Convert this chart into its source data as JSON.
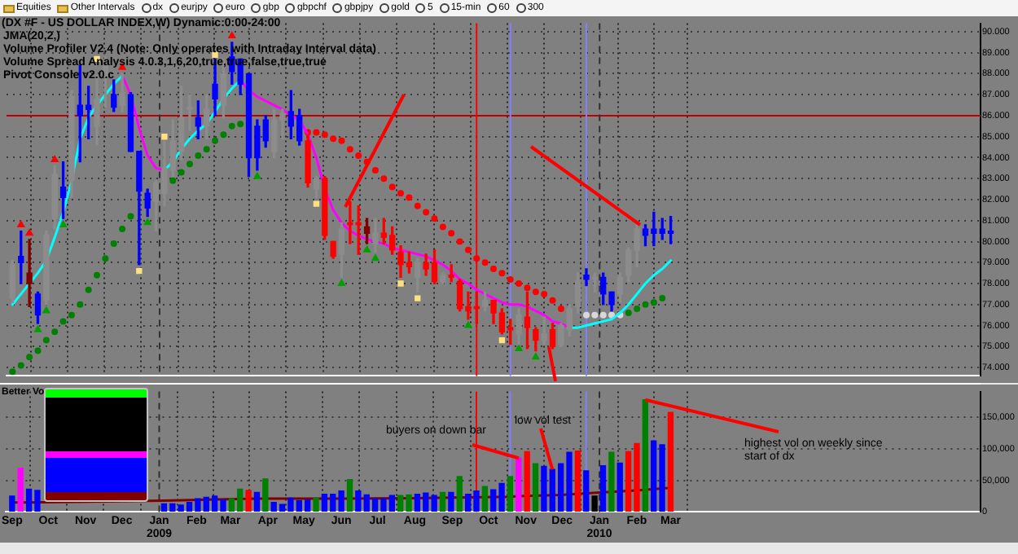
{
  "chart_data": [
    {
      "type": "candlestick",
      "title": "(DX #F - US DOLLAR INDEX,W) Dynamic:0:00-24:00",
      "annotations": [
        "JMA(20,2,)",
        "Volume Profiler V2.4 (Note: Only operates with Intraday Interval data)",
        "Volume Spread Analysis 4.0.3,1,6,20,true,true,false,true,true",
        "Pivot Console v2.0.c"
      ],
      "x": [
        "2008-09-01",
        "2008-09-08",
        "2008-09-15",
        "2008-09-22",
        "2008-09-29",
        "2008-10-06",
        "2008-10-13",
        "2008-10-20",
        "2008-10-27",
        "2008-11-03",
        "2008-11-10",
        "2008-11-17",
        "2008-11-24",
        "2008-12-01",
        "2008-12-08",
        "2008-12-15",
        "2008-12-22",
        "2008-12-29",
        "2009-01-05",
        "2009-01-12",
        "2009-01-19",
        "2009-01-26",
        "2009-02-02",
        "2009-02-09",
        "2009-02-16",
        "2009-02-23",
        "2009-03-02",
        "2009-03-09",
        "2009-03-16",
        "2009-03-23",
        "2009-03-30",
        "2009-04-06",
        "2009-04-13",
        "2009-04-20",
        "2009-04-27",
        "2009-05-04",
        "2009-05-11",
        "2009-05-18",
        "2009-05-25",
        "2009-06-01",
        "2009-06-08",
        "2009-06-15",
        "2009-06-22",
        "2009-06-29",
        "2009-07-06",
        "2009-07-13",
        "2009-07-20",
        "2009-07-27",
        "2009-08-03",
        "2009-08-10",
        "2009-08-17",
        "2009-08-24",
        "2009-08-31",
        "2009-09-07",
        "2009-09-14",
        "2009-09-21",
        "2009-09-28",
        "2009-10-05",
        "2009-10-12",
        "2009-10-19",
        "2009-10-26",
        "2009-11-02",
        "2009-11-09",
        "2009-11-16",
        "2009-11-23",
        "2009-11-30",
        "2009-12-07",
        "2009-12-14",
        "2009-12-21",
        "2009-12-28",
        "2010-01-04",
        "2010-01-11",
        "2010-01-18",
        "2010-01-25",
        "2010-02-01",
        "2010-02-08",
        "2010-02-15",
        "2010-02-22",
        "2010-03-01"
      ],
      "ohlc": [
        [
          77.3,
          79.1,
          77.1,
          78.9
        ],
        [
          79.3,
          80.5,
          78.0,
          79.0
        ],
        [
          78.5,
          80.1,
          76.9,
          78.0
        ],
        [
          77.5,
          77.6,
          76.1,
          76.5
        ],
        [
          77.2,
          80.5,
          77.0,
          80.3
        ],
        [
          81.1,
          83.6,
          80.6,
          83.2
        ],
        [
          82.6,
          83.8,
          81.1,
          82.1
        ],
        [
          82.9,
          87.2,
          82.1,
          86.9
        ],
        [
          86.5,
          88.4,
          83.8,
          86.0
        ],
        [
          86.5,
          87.4,
          84.9,
          86.3
        ],
        [
          85.5,
          87.9,
          84.6,
          86.8
        ],
        [
          87.9,
          88.8,
          86.4,
          88.4
        ],
        [
          87.0,
          87.7,
          86.2,
          86.4
        ],
        [
          86.5,
          88.0,
          86.2,
          87.1
        ],
        [
          87.0,
          87.1,
          84.3,
          84.3
        ],
        [
          84.3,
          84.3,
          78.9,
          82.4
        ],
        [
          82.3,
          82.5,
          81.2,
          81.6
        ],
        [
          81.9,
          82.9,
          80.5,
          82.8
        ],
        [
          82.3,
          84.8,
          81.7,
          83.5
        ],
        [
          83.4,
          85.8,
          83.1,
          84.8
        ],
        [
          84.3,
          87.4,
          83.9,
          85.9
        ],
        [
          86.3,
          87.0,
          85.3,
          86.4
        ],
        [
          85.9,
          86.7,
          84.9,
          85.5
        ],
        [
          85.5,
          87.0,
          84.9,
          86.3
        ],
        [
          87.5,
          88.7,
          86.0,
          86.8
        ],
        [
          86.5,
          88.7,
          85.9,
          88.0
        ],
        [
          88.8,
          89.5,
          87.5,
          88.1
        ],
        [
          88.7,
          88.7,
          87.0,
          87.5
        ],
        [
          88.0,
          88.0,
          83.1,
          84.0
        ],
        [
          85.5,
          85.8,
          83.4,
          84.0
        ],
        [
          85.8,
          86.0,
          84.5,
          84.8
        ],
        [
          84.3,
          86.3,
          84.0,
          85.8
        ],
        [
          85.8,
          86.3,
          84.9,
          86.1
        ],
        [
          86.2,
          87.2,
          84.9,
          85.5
        ],
        [
          86.0,
          86.3,
          84.6,
          84.8
        ],
        [
          84.8,
          85.1,
          82.6,
          82.8
        ],
        [
          82.5,
          83.1,
          82.1,
          83.0
        ],
        [
          83.0,
          83.1,
          80.1,
          80.3
        ],
        [
          80.0,
          80.0,
          79.2,
          79.3
        ],
        [
          79.4,
          80.9,
          78.3,
          80.6
        ],
        [
          80.9,
          81.9,
          79.9,
          80.8
        ],
        [
          80.9,
          81.7,
          79.4,
          80.8
        ],
        [
          80.7,
          81.1,
          79.9,
          80.4
        ],
        [
          79.9,
          81.1,
          79.5,
          80.4
        ],
        [
          80.4,
          81.1,
          79.9,
          80.2
        ],
        [
          80.3,
          80.7,
          79.4,
          79.6
        ],
        [
          79.5,
          79.8,
          78.3,
          78.9
        ],
        [
          79.0,
          79.5,
          78.5,
          78.8
        ],
        [
          78.3,
          79.2,
          77.6,
          79.0
        ],
        [
          79.0,
          79.4,
          78.4,
          78.7
        ],
        [
          79.0,
          79.6,
          78.0,
          78.1
        ],
        [
          78.1,
          78.5,
          78.0,
          78.4
        ],
        [
          78.4,
          78.9,
          78.1,
          78.3
        ],
        [
          78.1,
          78.2,
          76.7,
          76.8
        ],
        [
          76.9,
          77.6,
          76.3,
          76.7
        ],
        [
          76.9,
          77.6,
          76.1,
          76.8
        ],
        [
          76.9,
          77.6,
          76.7,
          77.2
        ],
        [
          77.2,
          77.2,
          76.1,
          76.6
        ],
        [
          76.6,
          76.8,
          75.6,
          75.7
        ],
        [
          75.9,
          76.3,
          75.1,
          75.8
        ],
        [
          75.6,
          76.8,
          75.1,
          76.5
        ],
        [
          76.4,
          77.6,
          74.9,
          75.9
        ],
        [
          75.8,
          75.9,
          74.8,
          75.3
        ],
        [
          75.3,
          76.4,
          75.1,
          75.6
        ],
        [
          75.8,
          76.1,
          74.9,
          75.0
        ],
        [
          75.1,
          76.1,
          75.0,
          76.0
        ],
        [
          75.8,
          77.0,
          75.5,
          76.8
        ],
        [
          76.9,
          78.5,
          76.6,
          78.1
        ],
        [
          78.4,
          78.7,
          77.9,
          78.2
        ],
        [
          78.2,
          78.5,
          77.6,
          78.3
        ],
        [
          78.3,
          78.5,
          77.0,
          77.5
        ],
        [
          77.6,
          77.6,
          76.7,
          77.0
        ],
        [
          77.5,
          78.5,
          77.1,
          78.3
        ],
        [
          78.4,
          79.7,
          78.1,
          79.6
        ],
        [
          79.6,
          80.8,
          78.8,
          80.6
        ],
        [
          80.6,
          80.8,
          79.8,
          80.3
        ],
        [
          80.6,
          81.4,
          79.8,
          80.4
        ],
        [
          80.6,
          81.1,
          80.1,
          80.4
        ],
        [
          80.5,
          81.2,
          79.9,
          80.4
        ]
      ],
      "colors": [
        "#8c8c8c",
        "#0000ff",
        "#800000",
        "#0000ff",
        "#8c8c8c",
        "#8c8c8c",
        "#0000ff",
        "#8c8c8c",
        "#0000ff",
        "#0000ff",
        "#8c8c8c",
        "#8c8c8c",
        "#0000ff",
        "#8c8c8c",
        "#0000ff",
        "#0000ff",
        "#0000ff",
        "#8c8c8c",
        "#8c8c8c",
        "#8c8c8c",
        "#8c8c8c",
        "#8c8c8c",
        "#0000ff",
        "#8c8c8c",
        "#0000ff",
        "#8c8c8c",
        "#0000ff",
        "#0000ff",
        "#0000ff",
        "#0000ff",
        "#0000ff",
        "#8c8c8c",
        "#8c8c8c",
        "#0000ff",
        "#0000ff",
        "#ff0000",
        "#8c8c8c",
        "#ff0000",
        "#ff0000",
        "#8c8c8c",
        "#ff0000",
        "#ff0000",
        "#800000",
        "#8c8c8c",
        "#ff0000",
        "#ff0000",
        "#ff0000",
        "#ff0000",
        "#8c8c8c",
        "#ff0000",
        "#ff0000",
        "#8c8c8c",
        "#ff0000",
        "#ff0000",
        "#ff0000",
        "#ff0000",
        "#8c8c8c",
        "#ff0000",
        "#ff0000",
        "#ff0000",
        "#8c8c8c",
        "#ff0000",
        "#ff0000",
        "#8c8c8c",
        "#ff0000",
        "#8c8c8c",
        "#8c8c8c",
        "#8c8c8c",
        "#0000ff",
        "#8c8c8c",
        "#0000ff",
        "#0000ff",
        "#8c8c8c",
        "#8c8c8c",
        "#8c8c8c",
        "#0000ff",
        "#0000ff",
        "#0000ff",
        "#0000ff"
      ],
      "series": [
        {
          "type": "line",
          "color": "#00ffff",
          "values": [
            77.0,
            77.5,
            78.0,
            78.5,
            79.1,
            80.2,
            81.4,
            82.9,
            84.9,
            85.9,
            86.5,
            87.0,
            87.5,
            87.9,
            null,
            null,
            null,
            null,
            83.4,
            83.8,
            84.4,
            84.9,
            85.3,
            85.6,
            86.2,
            86.8,
            87.3,
            87.7,
            null,
            null,
            null,
            null,
            null,
            null,
            null,
            null,
            null,
            null,
            null,
            null,
            null,
            null,
            null,
            null,
            null,
            null,
            null,
            null,
            null,
            null,
            null,
            null,
            null,
            null,
            null,
            null,
            null,
            null,
            null,
            null,
            null,
            null,
            null,
            null,
            null,
            null,
            75.9,
            75.9,
            76.0,
            76.1,
            76.2,
            76.3,
            76.6,
            77.0,
            77.5,
            78.0,
            78.4,
            78.7,
            79.1
          ]
        },
        {
          "type": "line",
          "color": "#ff00ff",
          "values": [
            null,
            null,
            null,
            null,
            null,
            null,
            null,
            null,
            null,
            null,
            null,
            null,
            null,
            87.9,
            87.0,
            85.4,
            84.1,
            83.5,
            83.4,
            null,
            null,
            null,
            null,
            null,
            null,
            null,
            null,
            87.7,
            87.2,
            86.9,
            86.7,
            86.5,
            86.3,
            86.0,
            85.8,
            85.1,
            84.0,
            82.5,
            81.5,
            80.9,
            80.5,
            80.3,
            80.1,
            80.0,
            79.9,
            79.7,
            79.6,
            79.5,
            79.4,
            79.3,
            79.1,
            78.9,
            78.6,
            78.2,
            78.0,
            77.7,
            77.5,
            77.3,
            77.1,
            77.0,
            77.0,
            76.9,
            76.7,
            76.5,
            76.2,
            76.1,
            75.9,
            null,
            null,
            null,
            null,
            null,
            null,
            null,
            null,
            null,
            null,
            null,
            null
          ]
        },
        {
          "type": "scatter",
          "color": "#008000",
          "marker": "circle",
          "x": [
            "2008-09-01",
            "2008-09-08",
            "2008-09-15",
            "2008-09-22",
            "2008-09-29",
            "2008-10-06",
            "2008-10-13",
            "2008-10-20",
            "2008-10-27",
            "2008-11-03",
            "2008-11-10",
            "2008-11-17",
            "2008-11-24",
            "2008-12-01",
            "2008-12-08",
            "2009-01-12",
            "2009-01-19",
            "2009-01-26",
            "2009-02-02",
            "2009-02-09",
            "2009-02-16",
            "2009-02-23",
            "2009-03-02",
            "2009-03-09",
            "2010-01-25",
            "2010-02-01",
            "2010-02-08",
            "2010-02-15",
            "2010-02-22"
          ],
          "values": [
            73.8,
            74.1,
            74.5,
            74.8,
            75.3,
            75.7,
            76.2,
            76.5,
            77.0,
            77.7,
            78.4,
            79.2,
            79.9,
            80.6,
            81.2,
            82.9,
            83.3,
            83.7,
            84.1,
            84.4,
            84.8,
            85.1,
            85.5,
            85.6,
            76.6,
            76.8,
            77.0,
            77.1,
            77.3
          ]
        },
        {
          "type": "scatter",
          "color": "#ff0000",
          "marker": "circle",
          "x": [
            "2009-05-04",
            "2009-05-11",
            "2009-05-18",
            "2009-05-25",
            "2009-06-01",
            "2009-06-08",
            "2009-06-15",
            "2009-06-22",
            "2009-06-29",
            "2009-07-06",
            "2009-07-13",
            "2009-07-20",
            "2009-07-27",
            "2009-08-03",
            "2009-08-10",
            "2009-08-17",
            "2009-08-24",
            "2009-08-31",
            "2009-09-07",
            "2009-09-14",
            "2009-09-21",
            "2009-09-28",
            "2009-10-05",
            "2009-10-12",
            "2009-10-19",
            "2009-10-26",
            "2009-11-02",
            "2009-11-09",
            "2009-11-16",
            "2009-11-23",
            "2009-11-30"
          ],
          "values": [
            85.2,
            85.2,
            85.1,
            84.9,
            84.8,
            84.4,
            84.1,
            83.8,
            83.4,
            83.0,
            82.6,
            82.3,
            82.1,
            81.7,
            81.4,
            81.1,
            80.7,
            80.4,
            80.0,
            79.6,
            79.2,
            79.0,
            78.7,
            78.5,
            78.2,
            78.0,
            77.8,
            77.6,
            77.5,
            77.2,
            76.8
          ]
        },
        {
          "type": "scatter",
          "color": "#d8d8d8",
          "marker": "circle",
          "x": [
            "2009-12-21",
            "2009-12-28",
            "2010-01-04",
            "2010-01-11",
            "2010-01-18"
          ],
          "values": [
            76.5,
            76.5,
            76.5,
            76.5,
            76.5
          ]
        },
        {
          "type": "scatter",
          "color": "#ff0000",
          "marker": "triangle",
          "x": [
            "2008-09-08",
            "2008-09-15",
            "2008-10-06",
            "2008-12-01",
            "2009-03-02"
          ],
          "values": [
            80.8,
            80.4,
            83.9,
            88.3,
            89.8
          ]
        },
        {
          "type": "scatter",
          "color": "#00a000",
          "marker": "triangle",
          "x": [
            "2008-09-22",
            "2008-09-29",
            "2008-10-13",
            "2008-12-22",
            "2009-03-23",
            "2009-06-01",
            "2009-06-22",
            "2009-06-29",
            "2009-09-14",
            "2009-10-26",
            "2009-11-09"
          ],
          "values": [
            75.8,
            76.7,
            80.8,
            80.9,
            83.1,
            78.0,
            79.6,
            79.2,
            76.0,
            74.9,
            74.5
          ]
        },
        {
          "type": "scatter",
          "color": "#ffe080",
          "marker": "square",
          "x": [
            "2008-11-10",
            "2008-12-15",
            "2009-01-05",
            "2009-02-16",
            "2009-05-11",
            "2009-07-20",
            "2009-08-03",
            "2009-10-12"
          ],
          "values": [
            88.7,
            78.6,
            85.0,
            88.9,
            81.8,
            78.0,
            77.3,
            75.3
          ]
        }
      ],
      "xlim": [
        "2008-08-27",
        "2010-11-13"
      ],
      "xticks": [
        {
          "value": "2008-09-01",
          "label": null
        },
        {
          "value": "2008-10-01",
          "label": null
        },
        {
          "value": "2008-11-01",
          "label": null
        },
        {
          "value": "2008-12-01",
          "label": null
        },
        {
          "value": "2009-01-01",
          "label": null
        },
        {
          "value": "2009-02-01",
          "label": null
        },
        {
          "value": "2009-03-01",
          "label": null
        },
        {
          "value": "2009-04-01",
          "label": null
        },
        {
          "value": "2009-05-01",
          "label": null
        },
        {
          "value": "2009-06-01",
          "label": null
        },
        {
          "value": "2009-07-01",
          "label": null
        },
        {
          "value": "2009-08-01",
          "label": null
        },
        {
          "value": "2009-09-01",
          "label": null
        },
        {
          "value": "2009-10-01",
          "label": null
        },
        {
          "value": "2009-11-01",
          "label": null
        },
        {
          "value": "2009-12-01",
          "label": null
        },
        {
          "value": "2010-01-01",
          "label": null
        },
        {
          "value": "2010-02-01",
          "label": null
        },
        {
          "value": "2010-03-01",
          "label": null
        }
      ],
      "ylim": [
        73.6,
        90.4
      ],
      "yticks": [
        {
          "value": 74,
          "label": "74.000"
        },
        {
          "value": 75,
          "label": "75.000"
        },
        {
          "value": 76,
          "label": "76.000"
        },
        {
          "value": 77,
          "label": "77.000"
        },
        {
          "value": 78,
          "label": "78.000"
        },
        {
          "value": 79,
          "label": "79.000"
        },
        {
          "value": 80,
          "label": "80.000"
        },
        {
          "value": 81,
          "label": "81.000"
        },
        {
          "value": 82,
          "label": "82.000"
        },
        {
          "value": 83,
          "label": "83.000"
        },
        {
          "value": 84,
          "label": "84.000"
        },
        {
          "value": 85,
          "label": "85.000"
        },
        {
          "value": 86,
          "label": "86.000"
        },
        {
          "value": 87,
          "label": "87.000"
        },
        {
          "value": 88,
          "label": "88.000"
        },
        {
          "value": 89,
          "label": "89.000"
        },
        {
          "value": 90,
          "label": "90.000"
        }
      ],
      "tick_labels": "y",
      "grid": true,
      "ref_lines": [
        {
          "axis": "y",
          "value": 86,
          "color": "#c00000"
        },
        {
          "axis": "x",
          "value": "2009-09-21",
          "color": "#ff0000"
        },
        {
          "axis": "x",
          "value": "2009-10-19",
          "color": "#8080ff"
        },
        {
          "axis": "x",
          "value": "2009-12-21",
          "color": "#8080ff"
        },
        {
          "axis": "x",
          "value": "2009-01-01",
          "color": "#303030",
          "line_style": "dashed"
        },
        {
          "axis": "x",
          "value": "2010-01-01",
          "color": "#303030",
          "line_style": "dashed"
        }
      ]
    },
    {
      "type": "bar",
      "title": "Better Vo",
      "annotations": [
        {
          "text": "buyers on down bar",
          "x": "2009-10-26",
          "y": 85000
        },
        {
          "text": "low vol test",
          "x": "2009-11-23",
          "y": 67000
        },
        {
          "text": "highest vol on weekly since start of dx",
          "x": "2010-02-08",
          "y": 177000
        }
      ],
      "x": [
        "2008-09-01",
        "2008-09-08",
        "2008-09-15",
        "2008-09-22",
        "2008-09-29",
        "2008-10-06",
        "2008-10-13",
        "2008-10-20",
        "2008-10-27",
        "2008-11-03",
        "2008-11-10",
        "2008-11-17",
        "2008-11-24",
        "2008-12-01",
        "2008-12-08",
        "2008-12-15",
        "2008-12-22",
        "2008-12-29",
        "2009-01-05",
        "2009-01-12",
        "2009-01-19",
        "2009-01-26",
        "2009-02-02",
        "2009-02-09",
        "2009-02-16",
        "2009-02-23",
        "2009-03-02",
        "2009-03-09",
        "2009-03-16",
        "2009-03-23",
        "2009-03-30",
        "2009-04-06",
        "2009-04-13",
        "2009-04-20",
        "2009-04-27",
        "2009-05-04",
        "2009-05-11",
        "2009-05-18",
        "2009-05-25",
        "2009-06-01",
        "2009-06-08",
        "2009-06-15",
        "2009-06-22",
        "2009-06-29",
        "2009-07-06",
        "2009-07-13",
        "2009-07-20",
        "2009-07-27",
        "2009-08-03",
        "2009-08-10",
        "2009-08-17",
        "2009-08-24",
        "2009-08-31",
        "2009-09-07",
        "2009-09-14",
        "2009-09-21",
        "2009-09-28",
        "2009-10-05",
        "2009-10-12",
        "2009-10-19",
        "2009-10-26",
        "2009-11-02",
        "2009-11-09",
        "2009-11-16",
        "2009-11-23",
        "2009-11-30",
        "2009-12-07",
        "2009-12-14",
        "2009-12-21",
        "2009-12-28",
        "2010-01-04",
        "2010-01-11",
        "2010-01-18",
        "2010-01-25",
        "2010-02-01",
        "2010-02-08",
        "2010-02-15",
        "2010-02-22",
        "2010-03-01"
      ],
      "values": [
        25000,
        69000,
        36000,
        34000,
        null,
        null,
        null,
        null,
        null,
        null,
        null,
        null,
        null,
        null,
        null,
        null,
        null,
        null,
        13000,
        13000,
        11000,
        15000,
        21000,
        23000,
        25000,
        19000,
        21000,
        36000,
        34000,
        31000,
        52000,
        15000,
        12000,
        22000,
        18000,
        19000,
        22000,
        28000,
        28000,
        33000,
        51000,
        33000,
        27000,
        21000,
        21000,
        26000,
        26000,
        27000,
        28000,
        30000,
        26000,
        31000,
        31000,
        56000,
        28000,
        33000,
        40000,
        35000,
        45000,
        56000,
        85000,
        95000,
        76000,
        72000,
        67000,
        76000,
        94000,
        96000,
        65000,
        25000,
        73000,
        94000,
        77000,
        95000,
        108000,
        177000,
        112000,
        106000,
        157000
      ],
      "colors": [
        "#0000ff",
        "#ff00ff",
        "#0000ff",
        "#0000ff",
        "#0000ff",
        "#0000ff",
        "#0000ff",
        "#0000ff",
        "#0000ff",
        "#0000ff",
        "#0000ff",
        "#0000ff",
        "#0000ff",
        "#0000ff",
        "#0000ff",
        "#0000ff",
        "#0000ff",
        "#0000ff",
        "#0000ff",
        "#0000ff",
        "#0000ff",
        "#0000ff",
        "#0000ff",
        "#0000ff",
        "#0000ff",
        "#0000ff",
        "#008000",
        "#008000",
        "#ff0000",
        "#0000ff",
        "#008000",
        "#0000ff",
        "#0000ff",
        "#0000ff",
        "#0000ff",
        "#0000ff",
        "#008000",
        "#0000ff",
        "#0000ff",
        "#0000ff",
        "#008000",
        "#0000ff",
        "#0000ff",
        "#0000ff",
        "#0000ff",
        "#0000ff",
        "#008000",
        "#008000",
        "#0000ff",
        "#0000ff",
        "#0000ff",
        "#008000",
        "#0000ff",
        "#008000",
        "#0000ff",
        "#0000ff",
        "#008000",
        "#0000ff",
        "#0000ff",
        "#008000",
        "#ff00ff",
        "#ff0000",
        "#008000",
        "#0000ff",
        "#0000ff",
        "#0000ff",
        "#0000ff",
        "#ff0000",
        "#0000ff",
        "#000000",
        "#0000ff",
        "#008000",
        "#0000ff",
        "#ff0000",
        "#ff0000",
        "#008000",
        "#0000ff",
        "#0000ff",
        "#ff0000"
      ],
      "series": [
        {
          "type": "line",
          "color": "#800000",
          "x": [
            "2008-09-01",
            "2008-09-15",
            "2009-01-05",
            "2009-03-23",
            "2009-06-01",
            "2009-08-10",
            "2009-10-19",
            "2009-10-26",
            "2009-11-30",
            "2010-01-04",
            "2010-02-01",
            "2010-03-01"
          ],
          "values": [
            15000,
            15000,
            18000,
            21000,
            21000,
            22000,
            24000,
            25000,
            27000,
            31000,
            34000,
            38000
          ]
        }
      ],
      "xlim": [
        "2008-08-27",
        "2010-11-13"
      ],
      "xticks": [
        {
          "value": "2008-09-01",
          "label": "Sep"
        },
        {
          "value": "2008-10-01",
          "label": "Oct"
        },
        {
          "value": "2008-11-01",
          "label": "Nov"
        },
        {
          "value": "2008-12-01",
          "label": "Dec"
        },
        {
          "value": "2009-01-01",
          "label": "Jan\n2009"
        },
        {
          "value": "2009-02-01",
          "label": "Feb"
        },
        {
          "value": "2009-03-01",
          "label": "Mar"
        },
        {
          "value": "2009-04-01",
          "label": "Apr"
        },
        {
          "value": "2009-05-01",
          "label": "May"
        },
        {
          "value": "2009-06-01",
          "label": "Jun"
        },
        {
          "value": "2009-07-01",
          "label": "Jul"
        },
        {
          "value": "2009-08-01",
          "label": "Aug"
        },
        {
          "value": "2009-09-01",
          "label": "Sep"
        },
        {
          "value": "2009-10-01",
          "label": "Oct"
        },
        {
          "value": "2009-11-01",
          "label": "Nov"
        },
        {
          "value": "2009-12-01",
          "label": "Dec"
        },
        {
          "value": "2010-01-01",
          "label": "Jan\n2010"
        },
        {
          "value": "2010-02-01",
          "label": "Feb"
        },
        {
          "value": "2010-03-01",
          "label": "Mar"
        }
      ],
      "ylim": [
        0,
        190000
      ],
      "yticks": [
        0,
        {
          "value": 50000,
          "label": "50,000"
        },
        {
          "value": 100000,
          "label": "100,000"
        },
        {
          "value": 150000,
          "label": "150,000"
        }
      ],
      "grid": true,
      "ref_lines": [
        {
          "axis": "x",
          "value": "2009-09-21",
          "color": "#ff0000"
        },
        {
          "axis": "x",
          "value": "2009-10-19",
          "color": "#8080ff"
        },
        {
          "axis": "x",
          "value": "2009-12-21",
          "color": "#8080ff"
        },
        {
          "axis": "x",
          "value": "2009-01-01",
          "color": "#303030",
          "line_style": "dashed"
        },
        {
          "axis": "x",
          "value": "2010-01-01",
          "color": "#303030",
          "line_style": "dashed"
        }
      ]
    },
    {
      "type": "other",
      "annotations": [
        "Equities",
        "Other Intervals",
        "dx",
        "eurjpy",
        "euro",
        "gbp",
        "gbpchf",
        "gbpjpy",
        "gold",
        "5",
        "15-min",
        "60",
        "300"
      ]
    }
  ]
}
